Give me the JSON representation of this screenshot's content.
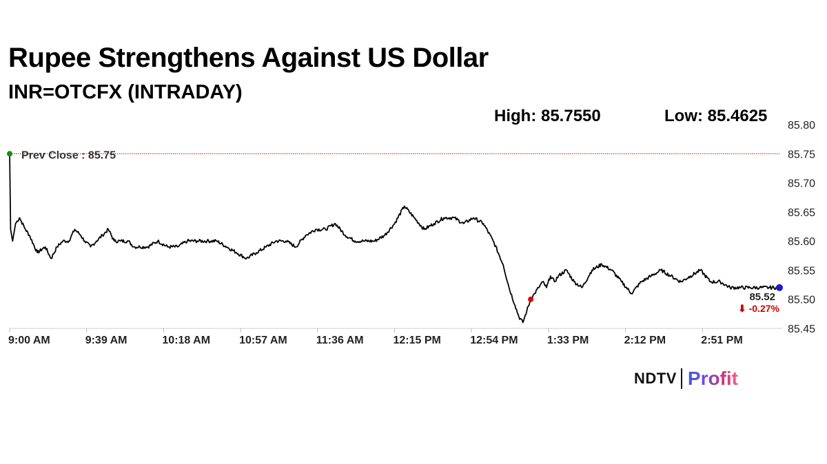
{
  "title": "Rupee Strengthens Against US Dollar",
  "subtitle": "INR=OTCFX (INTRADAY)",
  "stats": {
    "high": "High: 85.7550",
    "low": "Low: 85.4625"
  },
  "logo": {
    "brand": "NDTV",
    "product": "Profit"
  },
  "chart_data": {
    "type": "line",
    "x_tick_labels": [
      "9:00 AM",
      "9:39 AM",
      "10:18 AM",
      "10:57 AM",
      "11:36 AM",
      "12:15 PM",
      "12:54 PM",
      "1:33 PM",
      "2:12 PM",
      "2:51 PM"
    ],
    "x_ticks_minutes": [
      0,
      39,
      78,
      117,
      156,
      195,
      234,
      273,
      312,
      351
    ],
    "x_range_minutes": [
      0,
      390
    ],
    "y_ticks": [
      "85.80",
      "85.75",
      "85.70",
      "85.65",
      "85.60",
      "85.55",
      "85.50",
      "85.45"
    ],
    "ylim": [
      85.45,
      85.8
    ],
    "y_axis_position": "right",
    "prev_close": {
      "label": "Prev Close : 85.75",
      "value": 85.75,
      "color": "#cc0000"
    },
    "last": {
      "value_label": "85.52",
      "change_label": "⬇ -0.27%",
      "value": 85.52,
      "change_color": "#cc0000"
    },
    "markers": {
      "start_color": "#1a8a1a",
      "low_color": "#e00000",
      "end_color": "#1a1acc"
    },
    "line_color": "#000000",
    "series": [
      {
        "x": [
          0,
          0.5,
          1.5,
          3,
          5,
          8,
          10,
          14,
          18,
          21,
          24,
          27,
          30,
          33,
          36,
          38,
          41,
          44,
          47,
          50,
          53,
          56,
          60,
          63,
          66,
          70,
          75,
          80,
          85,
          90,
          95,
          100,
          105,
          110,
          115,
          120,
          125,
          130,
          135,
          140,
          145,
          150,
          155,
          160,
          165,
          170,
          175,
          180,
          185,
          190,
          195,
          200,
          205,
          210,
          215,
          220,
          225,
          230,
          235,
          240,
          245,
          250,
          253,
          256,
          258,
          260,
          262,
          264,
          266,
          268,
          270,
          272,
          274,
          276,
          278,
          282,
          286,
          290,
          295,
          300,
          305,
          310,
          315,
          320,
          325,
          330,
          335,
          340,
          345,
          350,
          355,
          360,
          365,
          370,
          375,
          380,
          385,
          390
        ],
        "y": [
          85.75,
          85.62,
          85.6,
          85.63,
          85.64,
          85.62,
          85.61,
          85.58,
          85.59,
          85.57,
          85.59,
          85.6,
          85.6,
          85.62,
          85.61,
          85.6,
          85.59,
          85.6,
          85.61,
          85.62,
          85.6,
          85.6,
          85.6,
          85.59,
          85.59,
          85.59,
          85.6,
          85.59,
          85.59,
          85.6,
          85.6,
          85.6,
          85.6,
          85.59,
          85.58,
          85.57,
          85.58,
          85.59,
          85.6,
          85.6,
          85.59,
          85.61,
          85.62,
          85.62,
          85.63,
          85.61,
          85.6,
          85.6,
          85.6,
          85.61,
          85.63,
          85.66,
          85.64,
          85.62,
          85.63,
          85.64,
          85.64,
          85.63,
          85.64,
          85.63,
          85.6,
          85.56,
          85.52,
          85.49,
          85.47,
          85.46,
          85.48,
          85.5,
          85.51,
          85.52,
          85.53,
          85.52,
          85.54,
          85.53,
          85.54,
          85.55,
          85.53,
          85.52,
          85.55,
          85.56,
          85.55,
          85.53,
          85.51,
          85.53,
          85.54,
          85.55,
          85.54,
          85.53,
          85.54,
          85.55,
          85.53,
          85.53,
          85.52,
          85.52,
          85.52,
          85.52,
          85.52,
          85.52
        ],
        "low_index": 67
      }
    ],
    "grid": false
  }
}
